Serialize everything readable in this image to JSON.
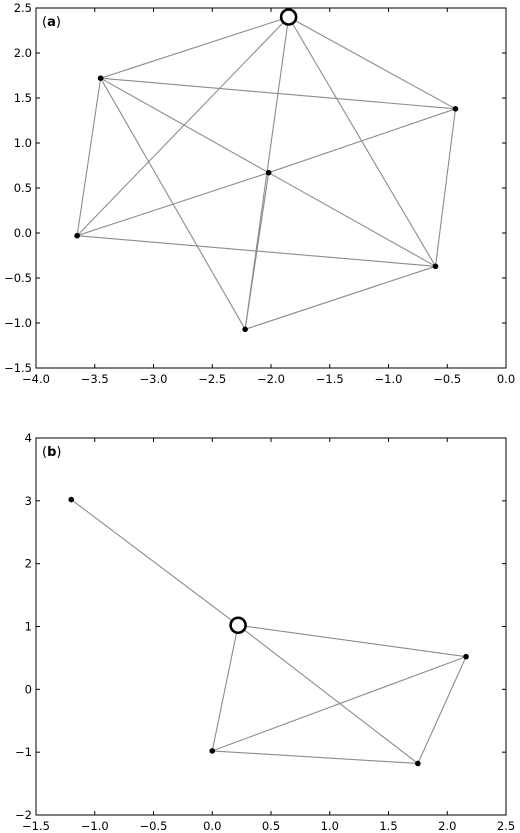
{
  "chart_data": [
    {
      "type": "scatter",
      "label": "(a)",
      "label_parts": {
        "open": "(",
        "letter": "a",
        "close": ")"
      },
      "xlim": [
        -4.0,
        0.0
      ],
      "ylim": [
        -1.5,
        2.5
      ],
      "xticks": [
        -4.0,
        -3.5,
        -3.0,
        -2.5,
        -2.0,
        -1.5,
        -1.0,
        -0.5,
        0.0
      ],
      "yticks": [
        -1.5,
        -1.0,
        -0.5,
        0.0,
        0.5,
        1.0,
        1.5,
        2.0,
        2.5
      ],
      "xtick_labels": [
        "−4.0",
        "−3.5",
        "−3.0",
        "−2.5",
        "−2.0",
        "−1.5",
        "−1.0",
        "−0.5",
        "0.0"
      ],
      "ytick_labels": [
        "−1.5",
        "−1.0",
        "−0.5",
        "0.0",
        "0.5",
        "1.0",
        "1.5",
        "2.0",
        "2.5"
      ],
      "nodes": [
        {
          "x": -1.85,
          "y": 2.4,
          "highlight": true
        },
        {
          "x": -3.45,
          "y": 1.72,
          "highlight": false
        },
        {
          "x": -0.43,
          "y": 1.38,
          "highlight": false
        },
        {
          "x": -2.02,
          "y": 0.67,
          "highlight": false
        },
        {
          "x": -3.65,
          "y": -0.03,
          "highlight": false
        },
        {
          "x": -0.6,
          "y": -0.37,
          "highlight": false
        },
        {
          "x": -2.22,
          "y": -1.07,
          "highlight": false
        }
      ],
      "edges": [
        [
          0,
          1
        ],
        [
          0,
          2
        ],
        [
          0,
          4
        ],
        [
          0,
          5
        ],
        [
          0,
          6
        ],
        [
          1,
          2
        ],
        [
          1,
          3
        ],
        [
          1,
          4
        ],
        [
          1,
          6
        ],
        [
          2,
          3
        ],
        [
          2,
          5
        ],
        [
          3,
          4
        ],
        [
          3,
          5
        ],
        [
          3,
          6
        ],
        [
          4,
          5
        ],
        [
          5,
          6
        ]
      ]
    },
    {
      "type": "scatter",
      "label": "(b)",
      "label_parts": {
        "open": "(",
        "letter": "b",
        "close": ")"
      },
      "xlim": [
        -1.5,
        2.5
      ],
      "ylim": [
        -2,
        4
      ],
      "xticks": [
        -1.5,
        -1.0,
        -0.5,
        0.0,
        0.5,
        1.0,
        1.5,
        2.0,
        2.5
      ],
      "yticks": [
        -2,
        -1,
        0,
        1,
        2,
        3,
        4
      ],
      "xtick_labels": [
        "−1.5",
        "−1.0",
        "−0.5",
        "0.0",
        "0.5",
        "1.0",
        "1.5",
        "2.0",
        "2.5"
      ],
      "ytick_labels": [
        "−2",
        "−1",
        "0",
        "1",
        "2",
        "3",
        "4"
      ],
      "nodes": [
        {
          "x": 0.22,
          "y": 1.02,
          "highlight": true
        },
        {
          "x": -1.2,
          "y": 3.02,
          "highlight": false
        },
        {
          "x": 2.16,
          "y": 0.52,
          "highlight": false
        },
        {
          "x": 0.0,
          "y": -0.98,
          "highlight": false
        },
        {
          "x": 1.75,
          "y": -1.18,
          "highlight": false
        }
      ],
      "edges": [
        [
          0,
          1
        ],
        [
          0,
          2
        ],
        [
          0,
          3
        ],
        [
          0,
          4
        ],
        [
          2,
          3
        ],
        [
          2,
          4
        ],
        [
          3,
          4
        ]
      ]
    }
  ]
}
